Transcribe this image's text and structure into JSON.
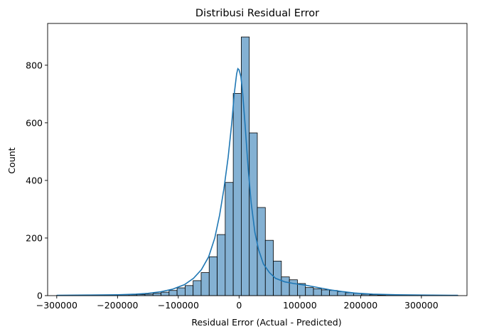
{
  "chart_data": {
    "type": "bar",
    "title": "Distribusi Residual Error",
    "xlabel": "Residual Error (Actual - Predicted)",
    "ylabel": "Count",
    "xlim": [
      -315000,
      375000
    ],
    "ylim": [
      0,
      945
    ],
    "xticks": [
      -300000,
      -200000,
      -100000,
      0,
      100000,
      200000,
      300000
    ],
    "xtick_labels": [
      "−300000",
      "−200000",
      "−100000",
      "0",
      "100000",
      "200000",
      "300000"
    ],
    "yticks": [
      0,
      200,
      400,
      600,
      800
    ],
    "ytick_labels": [
      "0",
      "200",
      "400",
      "600",
      "800"
    ],
    "bin_start": -300000,
    "bin_width": 13200,
    "counts": [
      1,
      1,
      1,
      1,
      1,
      1,
      2,
      2,
      3,
      3,
      4,
      5,
      8,
      12,
      18,
      27,
      35,
      52,
      80,
      135,
      212,
      393,
      702,
      898,
      565,
      306,
      192,
      120,
      65,
      55,
      42,
      28,
      24,
      20,
      18,
      14,
      10,
      8,
      5,
      3,
      2,
      1,
      1,
      1,
      1,
      1,
      1,
      1,
      1,
      1
    ],
    "kde": {
      "x": [
        -300000,
        -250000,
        -200000,
        -170000,
        -150000,
        -130000,
        -110000,
        -90000,
        -75000,
        -62000,
        -50000,
        -40000,
        -32000,
        -25000,
        -18000,
        -12000,
        -8000,
        -4000,
        -2000,
        0,
        3000,
        6000,
        10000,
        15000,
        20000,
        26000,
        32000,
        40000,
        50000,
        60000,
        75000,
        90000,
        110000,
        130000,
        150000,
        170000,
        190000,
        220000,
        260000,
        300000,
        360000
      ],
      "y": [
        1,
        2,
        3,
        5,
        8,
        13,
        22,
        38,
        60,
        90,
        135,
        200,
        280,
        370,
        480,
        600,
        700,
        770,
        788,
        784,
        760,
        700,
        590,
        440,
        320,
        220,
        160,
        110,
        80,
        60,
        48,
        42,
        36,
        28,
        20,
        14,
        9,
        5,
        3,
        2,
        1
      ]
    },
    "colors": {
      "bar_fill": "#84b1d3",
      "bar_edge": "#000000",
      "kde_line": "#1f77b4"
    },
    "grid": false
  }
}
